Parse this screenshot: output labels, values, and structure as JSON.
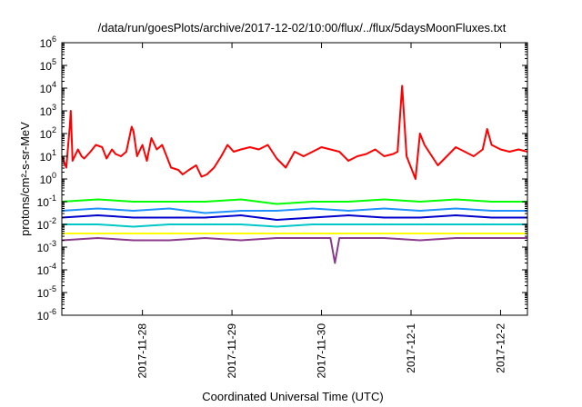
{
  "chart_data": {
    "type": "line",
    "title": "/data/run/goesPlots/archive/2017-12-02/10:00/flux/../flux/5daysMoonFluxes.txt",
    "xlabel": "Coordinated Universal Time (UTC)",
    "ylabel": "protons/cm²-s-sr-MeV",
    "yscale": "log",
    "ylim": [
      1e-06,
      1000000.0
    ],
    "xlim": [
      0,
      5.2
    ],
    "x_ticks": [
      {
        "label": "2017-11-28",
        "x": 0.9
      },
      {
        "label": "2017-11-29",
        "x": 1.9
      },
      {
        "label": "2017-11-30",
        "x": 2.9
      },
      {
        "label": "2017-12-1",
        "x": 3.9
      },
      {
        "label": "2017-12-2",
        "x": 4.9
      }
    ],
    "y_ticks": [
      {
        "base": "10",
        "exp": "-6",
        "value": -6
      },
      {
        "base": "10",
        "exp": "-5",
        "value": -5
      },
      {
        "base": "10",
        "exp": "-4",
        "value": -4
      },
      {
        "base": "10",
        "exp": "-3",
        "value": -3
      },
      {
        "base": "10",
        "exp": "-2",
        "value": -2
      },
      {
        "base": "10",
        "exp": "-1",
        "value": -1
      },
      {
        "base": "10",
        "exp": "0",
        "value": 0
      },
      {
        "base": "10",
        "exp": "1",
        "value": 1
      },
      {
        "base": "10",
        "exp": "2",
        "value": 2
      },
      {
        "base": "10",
        "exp": "3",
        "value": 3
      },
      {
        "base": "10",
        "exp": "4",
        "value": 4
      },
      {
        "base": "10",
        "exp": "5",
        "value": 5
      },
      {
        "base": "10",
        "exp": "6",
        "value": 6
      }
    ],
    "grid": false,
    "legend": "none",
    "series": [
      {
        "color": "#ff0000",
        "x": [
          0.0,
          0.05,
          0.09,
          0.1,
          0.12,
          0.18,
          0.22,
          0.25,
          0.32,
          0.38,
          0.45,
          0.5,
          0.56,
          0.6,
          0.66,
          0.72,
          0.78,
          0.8,
          0.84,
          0.9,
          0.95,
          1.0,
          1.06,
          1.12,
          1.18,
          1.22,
          1.3,
          1.35,
          1.42,
          1.5,
          1.56,
          1.62,
          1.7,
          1.78,
          1.85,
          1.92,
          2.0,
          2.1,
          2.2,
          2.3,
          2.4,
          2.5,
          2.6,
          2.7,
          2.8,
          2.85,
          2.9,
          3.0,
          3.1,
          3.2,
          3.3,
          3.4,
          3.5,
          3.6,
          3.7,
          3.75,
          3.8,
          3.85,
          3.9,
          3.95,
          4.0,
          4.05,
          4.1,
          4.2,
          4.3,
          4.4,
          4.5,
          4.6,
          4.7,
          4.75,
          4.8,
          4.9,
          5.0,
          5.1,
          5.2
        ],
        "values": [
          1.0,
          0.5,
          2.4,
          3.0,
          0.8,
          1.3,
          1.0,
          0.9,
          1.2,
          1.5,
          1.4,
          0.9,
          1.3,
          1.1,
          1.0,
          1.2,
          2.3,
          2.1,
          1.0,
          1.5,
          0.8,
          1.8,
          1.3,
          1.5,
          0.9,
          0.5,
          0.4,
          0.2,
          0.4,
          0.6,
          0.1,
          0.2,
          0.5,
          1.0,
          1.5,
          1.2,
          1.3,
          1.4,
          1.3,
          1.5,
          0.9,
          0.5,
          1.2,
          1.0,
          1.2,
          1.3,
          1.4,
          1.3,
          1.2,
          0.8,
          1.0,
          1.1,
          1.3,
          1.0,
          1.1,
          1.2,
          4.1,
          1.0,
          0.5,
          0.0,
          2.0,
          1.5,
          1.2,
          0.6,
          1.0,
          1.4,
          1.2,
          1.0,
          1.3,
          2.2,
          1.5,
          1.3,
          1.2,
          1.3,
          1.2
        ]
      },
      {
        "color": "#00ff00",
        "x": [
          0.0,
          0.4,
          0.8,
          1.2,
          1.6,
          2.0,
          2.4,
          2.8,
          3.2,
          3.6,
          4.0,
          4.4,
          4.8,
          5.2
        ],
        "values": [
          -1.0,
          -0.9,
          -1.0,
          -1.0,
          -1.0,
          -0.9,
          -1.1,
          -1.0,
          -1.0,
          -0.9,
          -1.0,
          -0.9,
          -1.0,
          -1.0
        ]
      },
      {
        "color": "#1e90ff",
        "x": [
          0.0,
          0.4,
          0.8,
          1.2,
          1.6,
          2.0,
          2.4,
          2.8,
          3.2,
          3.6,
          4.0,
          4.4,
          4.8,
          5.2
        ],
        "values": [
          -1.4,
          -1.3,
          -1.4,
          -1.3,
          -1.5,
          -1.4,
          -1.4,
          -1.3,
          -1.4,
          -1.3,
          -1.4,
          -1.3,
          -1.4,
          -1.4
        ]
      },
      {
        "color": "#0000cd",
        "x": [
          0.0,
          0.4,
          0.8,
          1.2,
          1.6,
          2.0,
          2.4,
          2.8,
          3.2,
          3.6,
          4.0,
          4.4,
          4.8,
          5.2
        ],
        "values": [
          -1.7,
          -1.6,
          -1.7,
          -1.7,
          -1.7,
          -1.6,
          -1.8,
          -1.7,
          -1.6,
          -1.7,
          -1.7,
          -1.6,
          -1.7,
          -1.7
        ]
      },
      {
        "color": "#00c8c8",
        "x": [
          0.0,
          0.4,
          0.8,
          1.2,
          1.6,
          2.0,
          2.4,
          2.8,
          3.2,
          3.6,
          4.0,
          4.4,
          4.8,
          5.2
        ],
        "values": [
          -2.0,
          -2.0,
          -2.1,
          -2.0,
          -2.0,
          -2.0,
          -2.1,
          -2.0,
          -2.0,
          -2.0,
          -2.0,
          -2.0,
          -2.0,
          -2.0
        ]
      },
      {
        "color": "#ffff00",
        "x": [
          0.0,
          0.4,
          0.8,
          1.2,
          1.6,
          2.0,
          2.4,
          2.8,
          3.2,
          3.6,
          4.0,
          4.4,
          4.8,
          5.2
        ],
        "values": [
          -2.4,
          -2.4,
          -2.4,
          -2.4,
          -2.4,
          -2.4,
          -2.4,
          -2.4,
          -2.4,
          -2.4,
          -2.4,
          -2.4,
          -2.4,
          -2.4
        ]
      },
      {
        "color": "#8b3a8b",
        "x": [
          0.0,
          0.4,
          0.8,
          1.2,
          1.6,
          2.0,
          2.4,
          2.8,
          3.0,
          3.05,
          3.1,
          3.2,
          3.6,
          4.0,
          4.4,
          4.8,
          5.2
        ],
        "values": [
          -2.7,
          -2.6,
          -2.7,
          -2.7,
          -2.6,
          -2.7,
          -2.6,
          -2.6,
          -2.6,
          -3.7,
          -2.6,
          -2.6,
          -2.6,
          -2.7,
          -2.6,
          -2.6,
          -2.6
        ]
      }
    ]
  }
}
